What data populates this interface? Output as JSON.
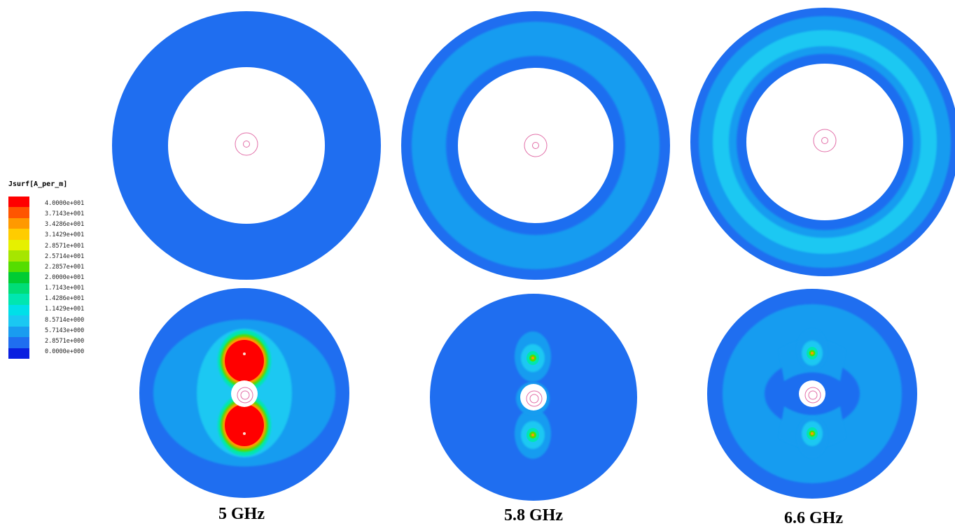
{
  "legend": {
    "title": "Jsurf[A_per_m]",
    "ticks": [
      "4.0000e+001",
      "3.7143e+001",
      "3.4286e+001",
      "3.1429e+001",
      "2.8571e+001",
      "2.5714e+001",
      "2.2857e+001",
      "2.0000e+001",
      "1.7143e+001",
      "1.4286e+001",
      "1.1429e+001",
      "8.5714e+000",
      "5.7143e+000",
      "2.8571e+000",
      "0.0000e+000"
    ],
    "colors": [
      "#ff0000",
      "#ff5500",
      "#ff9900",
      "#ffcc00",
      "#e6f000",
      "#a6e600",
      "#55dd00",
      "#00cc33",
      "#00dd77",
      "#00e6b0",
      "#00e0e8",
      "#1ac8f2",
      "#199cf0",
      "#1f6ef0",
      "#0a1fe0"
    ]
  },
  "panels": [
    {
      "label": "5 GHz"
    },
    {
      "label": "5.8 GHz"
    },
    {
      "label": "6.6 GHz"
    }
  ]
}
